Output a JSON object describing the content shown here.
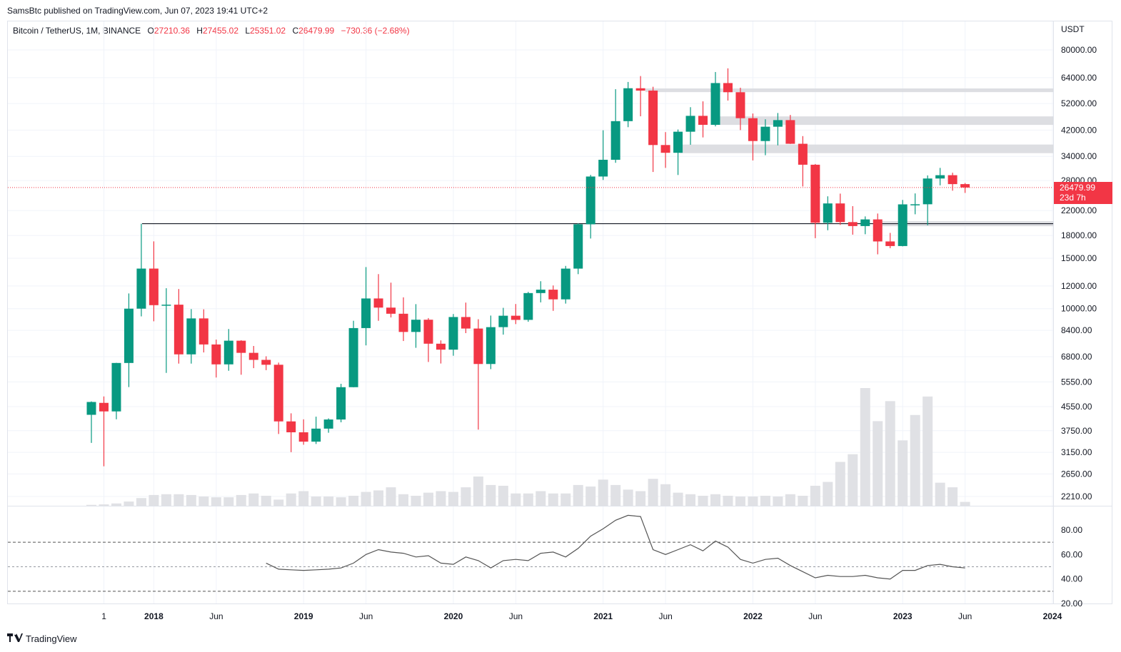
{
  "publish_line": "SamsBtc published on TradingView.com, Jun 07, 2023 19:41 UTC+2",
  "legend": {
    "symbol": "Bitcoin / TetherUS, 1M, BINANCE",
    "o_label": "O",
    "o_value": "27210.36",
    "h_label": "H",
    "h_value": "27455.02",
    "l_label": "L",
    "l_value": "25351.02",
    "c_label": "C",
    "c_value": "26479.99",
    "change": "−730.36 (−2.68%)"
  },
  "currency": "USDT",
  "last_price_label": "26479.99",
  "countdown_label": "23d 7h",
  "footer_brand": "TradingView",
  "colors": {
    "up": "#089981",
    "down": "#f23645",
    "volume": "#e0e1e5",
    "zone": "#d9dadf",
    "grid": "#f0f3fa",
    "rsi_line": "#555555"
  },
  "chart_data": {
    "type": "candlestick",
    "scale": "log",
    "price_ticks": [
      "80000.00",
      "64000.00",
      "52000.00",
      "42000.00",
      "34000.00",
      "28000.00",
      "22000.00",
      "18000.00",
      "15000.00",
      "12000.00",
      "10000.00",
      "8400.00",
      "6800.00",
      "5550.00",
      "4550.00",
      "3750.00",
      "3150.00",
      "2650.00",
      "2210.00"
    ],
    "time_ticks": [
      {
        "label": "1",
        "t": 2017.667,
        "bold": false
      },
      {
        "label": "2018",
        "t": 2018.0,
        "bold": true
      },
      {
        "label": "Jun",
        "t": 2018.417,
        "bold": false
      },
      {
        "label": "2019",
        "t": 2019.0,
        "bold": true
      },
      {
        "label": "Jun",
        "t": 2019.417,
        "bold": false
      },
      {
        "label": "2020",
        "t": 2020.0,
        "bold": true
      },
      {
        "label": "Jun",
        "t": 2020.417,
        "bold": false
      },
      {
        "label": "2021",
        "t": 2021.0,
        "bold": true
      },
      {
        "label": "Jun",
        "t": 2021.417,
        "bold": false
      },
      {
        "label": "2022",
        "t": 2022.0,
        "bold": true
      },
      {
        "label": "Jun",
        "t": 2022.417,
        "bold": false
      },
      {
        "label": "2023",
        "t": 2023.0,
        "bold": true
      },
      {
        "label": "Jun",
        "t": 2023.417,
        "bold": false
      },
      {
        "label": "2024",
        "t": 2024.0,
        "bold": true
      }
    ],
    "start": "2017-08",
    "candles": [
      {
        "o": 4261,
        "h": 4745,
        "l": 3400,
        "c": 4724,
        "v": 1.2
      },
      {
        "o": 4690,
        "h": 4939,
        "l": 2817,
        "c": 4379,
        "v": 1.8
      },
      {
        "o": 4379,
        "h": 6470,
        "l": 4110,
        "c": 6463,
        "v": 3
      },
      {
        "o": 6463,
        "h": 11300,
        "l": 5325,
        "c": 10000,
        "v": 5.5
      },
      {
        "o": 10000,
        "h": 19798,
        "l": 9400,
        "c": 13800,
        "v": 10
      },
      {
        "o": 13800,
        "h": 17176,
        "l": 9035,
        "c": 10285,
        "v": 14
      },
      {
        "o": 10285,
        "h": 11786,
        "l": 5968,
        "c": 10326,
        "v": 15
      },
      {
        "o": 10326,
        "h": 11710,
        "l": 6430,
        "c": 6926,
        "v": 15
      },
      {
        "o": 6926,
        "h": 9965,
        "l": 6430,
        "c": 9246,
        "v": 14
      },
      {
        "o": 9246,
        "h": 9948,
        "l": 7034,
        "c": 7500,
        "v": 12
      },
      {
        "o": 7500,
        "h": 7800,
        "l": 5750,
        "c": 6391,
        "v": 11
      },
      {
        "o": 6391,
        "h": 8491,
        "l": 6070,
        "c": 7730,
        "v": 11
      },
      {
        "o": 7730,
        "h": 7760,
        "l": 5880,
        "c": 7011,
        "v": 14
      },
      {
        "o": 7011,
        "h": 7410,
        "l": 6200,
        "c": 6626,
        "v": 16
      },
      {
        "o": 6626,
        "h": 6820,
        "l": 6100,
        "c": 6371,
        "v": 13
      },
      {
        "o": 6371,
        "h": 6482,
        "l": 3652,
        "c": 4041,
        "v": 8
      },
      {
        "o": 4041,
        "h": 4312,
        "l": 3156,
        "c": 3702,
        "v": 16
      },
      {
        "o": 3702,
        "h": 4109,
        "l": 3350,
        "c": 3434,
        "v": 19
      },
      {
        "o": 3434,
        "h": 4198,
        "l": 3370,
        "c": 3813,
        "v": 12
      },
      {
        "o": 3813,
        "h": 4140,
        "l": 3689,
        "c": 4103,
        "v": 12
      },
      {
        "o": 4103,
        "h": 5467,
        "l": 4012,
        "c": 5320,
        "v": 11
      },
      {
        "o": 5320,
        "h": 9074,
        "l": 5317,
        "c": 8555,
        "v": 13
      },
      {
        "o": 8555,
        "h": 13970,
        "l": 7444,
        "c": 10854,
        "v": 18
      },
      {
        "o": 10854,
        "h": 13200,
        "l": 9070,
        "c": 10085,
        "v": 20
      },
      {
        "o": 10085,
        "h": 12325,
        "l": 9320,
        "c": 9600,
        "v": 24
      },
      {
        "o": 9600,
        "h": 10954,
        "l": 7710,
        "c": 8293,
        "v": 15
      },
      {
        "o": 8293,
        "h": 10370,
        "l": 7300,
        "c": 9150,
        "v": 13
      },
      {
        "o": 9150,
        "h": 9272,
        "l": 6515,
        "c": 7546,
        "v": 17
      },
      {
        "o": 7546,
        "h": 7750,
        "l": 6435,
        "c": 7193,
        "v": 19
      },
      {
        "o": 7193,
        "h": 9578,
        "l": 6850,
        "c": 9350,
        "v": 18
      },
      {
        "o": 9350,
        "h": 10500,
        "l": 8215,
        "c": 8523,
        "v": 24
      },
      {
        "o": 8523,
        "h": 9188,
        "l": 3782,
        "c": 6410,
        "v": 38
      },
      {
        "o": 6410,
        "h": 9460,
        "l": 6150,
        "c": 8620,
        "v": 27
      },
      {
        "o": 8620,
        "h": 10067,
        "l": 8117,
        "c": 9448,
        "v": 26
      },
      {
        "o": 9448,
        "h": 10380,
        "l": 8833,
        "c": 9138,
        "v": 16
      },
      {
        "o": 9138,
        "h": 11444,
        "l": 9000,
        "c": 11335,
        "v": 16
      },
      {
        "o": 11335,
        "h": 12468,
        "l": 10519,
        "c": 11649,
        "v": 19
      },
      {
        "o": 11649,
        "h": 12050,
        "l": 9825,
        "c": 10776,
        "v": 16
      },
      {
        "o": 10776,
        "h": 14100,
        "l": 10416,
        "c": 13797,
        "v": 16
      },
      {
        "o": 13797,
        "h": 19863,
        "l": 13195,
        "c": 19700,
        "v": 27
      },
      {
        "o": 19700,
        "h": 29300,
        "l": 17572,
        "c": 28923,
        "v": 25
      },
      {
        "o": 28923,
        "h": 41950,
        "l": 28130,
        "c": 33092,
        "v": 34
      },
      {
        "o": 33092,
        "h": 58352,
        "l": 32296,
        "c": 45136,
        "v": 27
      },
      {
        "o": 45136,
        "h": 61844,
        "l": 43000,
        "c": 58795,
        "v": 21
      },
      {
        "o": 58795,
        "h": 64854,
        "l": 46930,
        "c": 57694,
        "v": 19
      },
      {
        "o": 57694,
        "h": 59500,
        "l": 30000,
        "c": 37254,
        "v": 35
      },
      {
        "o": 37254,
        "h": 41330,
        "l": 31000,
        "c": 35000,
        "v": 28
      },
      {
        "o": 35000,
        "h": 42200,
        "l": 29278,
        "c": 41462,
        "v": 17
      },
      {
        "o": 41462,
        "h": 50500,
        "l": 37332,
        "c": 47100,
        "v": 15
      },
      {
        "o": 47100,
        "h": 52920,
        "l": 39600,
        "c": 43823,
        "v": 13
      },
      {
        "o": 43823,
        "h": 66999,
        "l": 43283,
        "c": 61299,
        "v": 15
      },
      {
        "o": 61299,
        "h": 69000,
        "l": 53256,
        "c": 56950,
        "v": 13
      },
      {
        "o": 56950,
        "h": 59053,
        "l": 42000,
        "c": 46216,
        "v": 12
      },
      {
        "o": 46216,
        "h": 47990,
        "l": 32917,
        "c": 38466,
        "v": 12
      },
      {
        "o": 38466,
        "h": 45821,
        "l": 34322,
        "c": 43160,
        "v": 13
      },
      {
        "o": 43160,
        "h": 48189,
        "l": 37155,
        "c": 45510,
        "v": 12
      },
      {
        "o": 45510,
        "h": 47444,
        "l": 37578,
        "c": 37630,
        "v": 15
      },
      {
        "o": 37630,
        "h": 40023,
        "l": 26700,
        "c": 31801,
        "v": 13
      },
      {
        "o": 31801,
        "h": 31982,
        "l": 17622,
        "c": 19942,
        "v": 26
      },
      {
        "o": 19942,
        "h": 24668,
        "l": 18781,
        "c": 23296,
        "v": 31
      },
      {
        "o": 23296,
        "h": 25211,
        "l": 19600,
        "c": 20050,
        "v": 57
      },
      {
        "o": 20050,
        "h": 22799,
        "l": 18125,
        "c": 19422,
        "v": 67
      },
      {
        "o": 19422,
        "h": 20988,
        "l": 18190,
        "c": 20490,
        "v": 153
      },
      {
        "o": 20490,
        "h": 21480,
        "l": 15476,
        "c": 17164,
        "v": 110
      },
      {
        "o": 17164,
        "h": 18387,
        "l": 16256,
        "c": 16542,
        "v": 136
      },
      {
        "o": 16542,
        "h": 23960,
        "l": 16499,
        "c": 23125,
        "v": 85
      },
      {
        "o": 23125,
        "h": 25250,
        "l": 21351,
        "c": 23142,
        "v": 118
      },
      {
        "o": 23142,
        "h": 29184,
        "l": 19549,
        "c": 28465,
        "v": 142
      },
      {
        "o": 28465,
        "h": 31000,
        "l": 26942,
        "c": 29233,
        "v": 30
      },
      {
        "o": 29233,
        "h": 29820,
        "l": 25811,
        "c": 27210,
        "v": 24
      },
      {
        "o": 27210,
        "h": 27455,
        "l": 25351,
        "c": 26480,
        "v": 5
      }
    ],
    "levels": [
      19798
    ],
    "zones": [
      [
        57000,
        58700
      ],
      [
        43800,
        46900
      ],
      [
        34900,
        37400
      ],
      [
        19400,
        20200
      ]
    ],
    "rsi": {
      "ticks": [
        "80.00",
        "60.00",
        "40.00",
        "20.00"
      ],
      "upper": 70,
      "mid": 50,
      "lower": 30,
      "values": [
        53,
        48,
        47.5,
        47,
        47.5,
        48,
        49,
        53,
        60,
        64,
        62,
        61,
        58,
        59,
        53,
        52,
        58,
        55,
        49,
        55,
        56,
        55,
        61,
        62,
        58,
        65,
        75,
        81,
        88,
        92,
        91,
        64,
        60,
        64,
        68,
        63,
        71,
        66,
        56,
        53,
        56,
        57,
        51,
        46,
        41,
        43,
        42,
        42,
        43,
        41,
        40,
        47,
        47,
        51,
        52,
        50,
        49
      ]
    }
  }
}
